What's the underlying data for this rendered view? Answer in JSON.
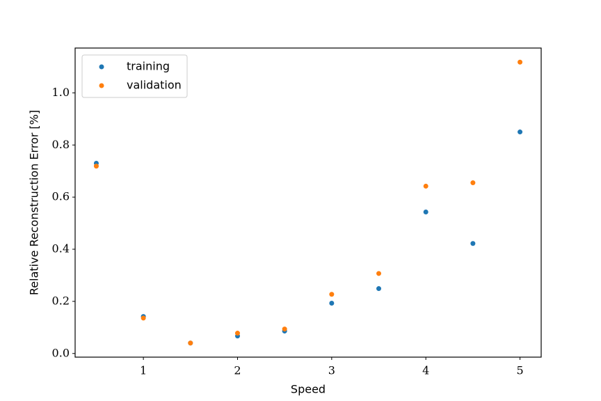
{
  "chart_data": {
    "type": "scatter",
    "xlabel": "Speed",
    "ylabel": "Relative Reconstruction Error [%]",
    "xlim": [
      0.275,
      5.225
    ],
    "ylim": [
      -0.014,
      1.172
    ],
    "xticks": [
      1,
      2,
      3,
      4,
      5
    ],
    "yticks": [
      {
        "value": 0,
        "label": "0.0"
      },
      {
        "value": 0.2,
        "label": "0.2"
      },
      {
        "value": 0.4,
        "label": "0.4"
      },
      {
        "value": 0.6,
        "label": "0.6"
      },
      {
        "value": 0.8,
        "label": "0.8"
      },
      {
        "value": 1.0,
        "label": "1.0"
      }
    ],
    "legend": "upper left",
    "series": [
      {
        "name": "training",
        "color": "#1f77b4",
        "x": [
          0.5,
          1,
          1.5,
          2,
          2.5,
          3,
          3.5,
          4,
          4.5,
          5
        ],
        "values": [
          0.73,
          0.142,
          0.04,
          0.067,
          0.086,
          0.193,
          0.249,
          0.543,
          0.422,
          0.85
        ]
      },
      {
        "name": "validation",
        "color": "#ff7f0e",
        "x": [
          0.5,
          1,
          1.5,
          2,
          2.5,
          3,
          3.5,
          4,
          4.5,
          5
        ],
        "values": [
          0.719,
          0.136,
          0.04,
          0.078,
          0.094,
          0.227,
          0.307,
          0.642,
          0.655,
          1.118
        ]
      }
    ]
  }
}
